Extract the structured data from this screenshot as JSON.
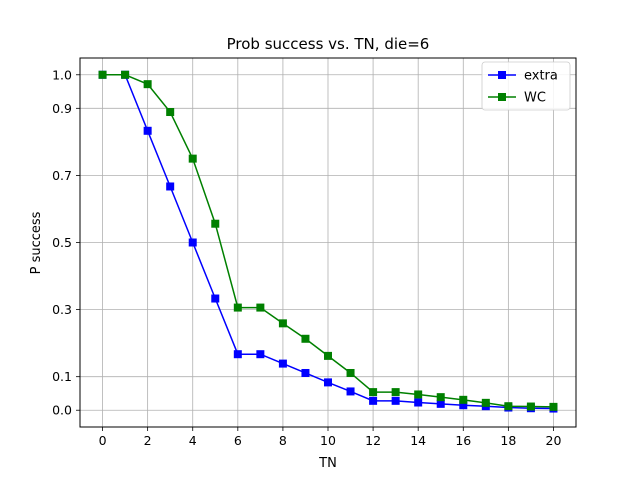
{
  "chart_data": {
    "type": "line",
    "title": "Prob success vs. TN, die=6",
    "xlabel": "TN",
    "ylabel": "P success",
    "xlim": [
      -1,
      21
    ],
    "ylim": [
      -0.05,
      1.05
    ],
    "x_ticks": [
      0,
      2,
      4,
      6,
      8,
      10,
      12,
      14,
      16,
      18,
      20
    ],
    "y_ticks": [
      0.0,
      0.1,
      0.3,
      0.5,
      0.7,
      0.9,
      1.0
    ],
    "y_tick_labels": [
      "0.0",
      "0.1",
      "0.3",
      "0.5",
      "0.7",
      "0.9",
      "1.0"
    ],
    "grid": true,
    "legend_position": "top-right",
    "x": [
      0,
      1,
      2,
      3,
      4,
      5,
      6,
      7,
      8,
      9,
      10,
      11,
      12,
      13,
      14,
      15,
      16,
      17,
      18,
      19,
      20
    ],
    "series": [
      {
        "name": "extra",
        "color": "#0000ff",
        "marker": "square",
        "values": [
          1.0,
          1.0,
          0.833,
          0.667,
          0.5,
          0.333,
          0.167,
          0.167,
          0.139,
          0.111,
          0.083,
          0.056,
          0.028,
          0.028,
          0.023,
          0.019,
          0.015,
          0.012,
          0.008,
          0.006,
          0.005
        ]
      },
      {
        "name": "WC",
        "color": "#008000",
        "marker": "square",
        "values": [
          1.0,
          1.0,
          0.972,
          0.889,
          0.75,
          0.556,
          0.306,
          0.306,
          0.259,
          0.213,
          0.162,
          0.111,
          0.054,
          0.054,
          0.047,
          0.039,
          0.031,
          0.022,
          0.012,
          0.011,
          0.01
        ]
      }
    ]
  }
}
